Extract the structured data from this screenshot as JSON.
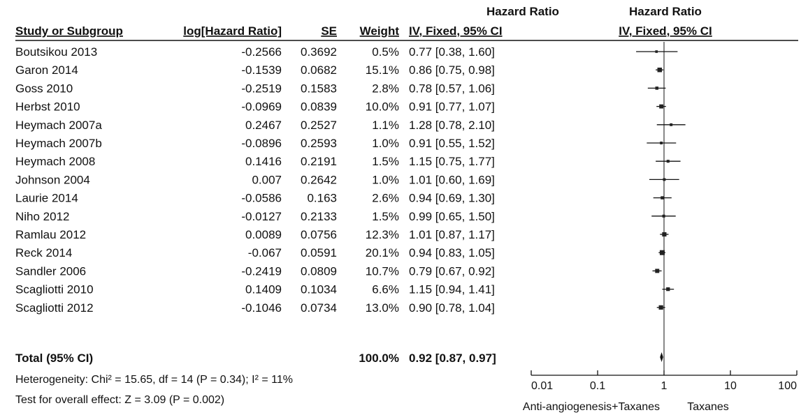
{
  "columns": {
    "study": "Study or Subgroup",
    "loghr": "log[Hazard Ratio]",
    "se": "SE",
    "weight": "Weight",
    "hr_title": "Hazard Ratio",
    "hr_sub": "IV, Fixed, 95% CI",
    "plot_title": "Hazard Ratio",
    "plot_sub": "IV, Fixed, 95% CI"
  },
  "studies": [
    {
      "name": "Boutsikou 2013",
      "loghr": "-0.2566",
      "se": "0.3692",
      "weight": "0.5%",
      "ci": "0.77 [0.38, 1.60]"
    },
    {
      "name": "Garon 2014",
      "loghr": "-0.1539",
      "se": "0.0682",
      "weight": "15.1%",
      "ci": "0.86 [0.75, 0.98]"
    },
    {
      "name": "Goss 2010",
      "loghr": "-0.2519",
      "se": "0.1583",
      "weight": "2.8%",
      "ci": "0.78 [0.57, 1.06]"
    },
    {
      "name": "Herbst 2010",
      "loghr": "-0.0969",
      "se": "0.0839",
      "weight": "10.0%",
      "ci": "0.91 [0.77, 1.07]"
    },
    {
      "name": "Heymach 2007a",
      "loghr": "0.2467",
      "se": "0.2527",
      "weight": "1.1%",
      "ci": "1.28 [0.78, 2.10]"
    },
    {
      "name": "Heymach 2007b",
      "loghr": "-0.0896",
      "se": "0.2593",
      "weight": "1.0%",
      "ci": "0.91 [0.55, 1.52]"
    },
    {
      "name": "Heymach 2008",
      "loghr": "0.1416",
      "se": "0.2191",
      "weight": "1.5%",
      "ci": "1.15 [0.75, 1.77]"
    },
    {
      "name": "Johnson 2004",
      "loghr": "0.007",
      "se": "0.2642",
      "weight": "1.0%",
      "ci": "1.01 [0.60, 1.69]"
    },
    {
      "name": "Laurie 2014",
      "loghr": "-0.0586",
      "se": "0.163",
      "weight": "2.6%",
      "ci": "0.94 [0.69, 1.30]"
    },
    {
      "name": "Niho 2012",
      "loghr": "-0.0127",
      "se": "0.2133",
      "weight": "1.5%",
      "ci": "0.99 [0.65, 1.50]"
    },
    {
      "name": "Ramlau 2012",
      "loghr": "0.0089",
      "se": "0.0756",
      "weight": "12.3%",
      "ci": "1.01 [0.87, 1.17]"
    },
    {
      "name": "Reck 2014",
      "loghr": "-0.067",
      "se": "0.0591",
      "weight": "20.1%",
      "ci": "0.94 [0.83, 1.05]"
    },
    {
      "name": "Sandler 2006",
      "loghr": "-0.2419",
      "se": "0.0809",
      "weight": "10.7%",
      "ci": "0.79 [0.67, 0.92]"
    },
    {
      "name": "Scagliotti 2010",
      "loghr": "0.1409",
      "se": "0.1034",
      "weight": "6.6%",
      "ci": "1.15 [0.94, 1.41]"
    },
    {
      "name": "Scagliotti 2012",
      "loghr": "-0.1046",
      "se": "0.0734",
      "weight": "13.0%",
      "ci": "0.90 [0.78, 1.04]"
    }
  ],
  "total": {
    "label": "Total (95% CI)",
    "weight": "100.0%",
    "ci": "0.92 [0.87, 0.97]"
  },
  "heterogeneity": "Heterogeneity: Chi² = 15.65, df = 14 (P = 0.34); I² = 11%",
  "overall_effect": "Test for overall effect: Z = 3.09 (P = 0.002)",
  "chart_data": {
    "type": "scatter",
    "subtype": "forest-plot",
    "x_scale": "log",
    "xlim": [
      0.01,
      100
    ],
    "x_ticks": [
      "0.01",
      "0.1",
      "1",
      "10",
      "100"
    ],
    "x_tick_values": [
      0.01,
      0.1,
      1,
      10,
      100
    ],
    "reference_line": 1,
    "favours_left": "Anti-angiogenesis+Taxanes",
    "favours_right": "Taxanes",
    "points": [
      {
        "hr": 0.77,
        "lo": 0.38,
        "hi": 1.6,
        "weight": 0.5
      },
      {
        "hr": 0.86,
        "lo": 0.75,
        "hi": 0.98,
        "weight": 15.1
      },
      {
        "hr": 0.78,
        "lo": 0.57,
        "hi": 1.06,
        "weight": 2.8
      },
      {
        "hr": 0.91,
        "lo": 0.77,
        "hi": 1.07,
        "weight": 10.0
      },
      {
        "hr": 1.28,
        "lo": 0.78,
        "hi": 2.1,
        "weight": 1.1
      },
      {
        "hr": 0.91,
        "lo": 0.55,
        "hi": 1.52,
        "weight": 1.0
      },
      {
        "hr": 1.15,
        "lo": 0.75,
        "hi": 1.77,
        "weight": 1.5
      },
      {
        "hr": 1.01,
        "lo": 0.6,
        "hi": 1.69,
        "weight": 1.0
      },
      {
        "hr": 0.94,
        "lo": 0.69,
        "hi": 1.3,
        "weight": 2.6
      },
      {
        "hr": 0.99,
        "lo": 0.65,
        "hi": 1.5,
        "weight": 1.5
      },
      {
        "hr": 1.01,
        "lo": 0.87,
        "hi": 1.17,
        "weight": 12.3
      },
      {
        "hr": 0.94,
        "lo": 0.83,
        "hi": 1.05,
        "weight": 20.1
      },
      {
        "hr": 0.79,
        "lo": 0.67,
        "hi": 0.92,
        "weight": 10.7
      },
      {
        "hr": 1.15,
        "lo": 0.94,
        "hi": 1.41,
        "weight": 6.6
      },
      {
        "hr": 0.9,
        "lo": 0.78,
        "hi": 1.04,
        "weight": 13.0
      }
    ],
    "pooled": {
      "hr": 0.92,
      "lo": 0.87,
      "hi": 0.97
    }
  }
}
